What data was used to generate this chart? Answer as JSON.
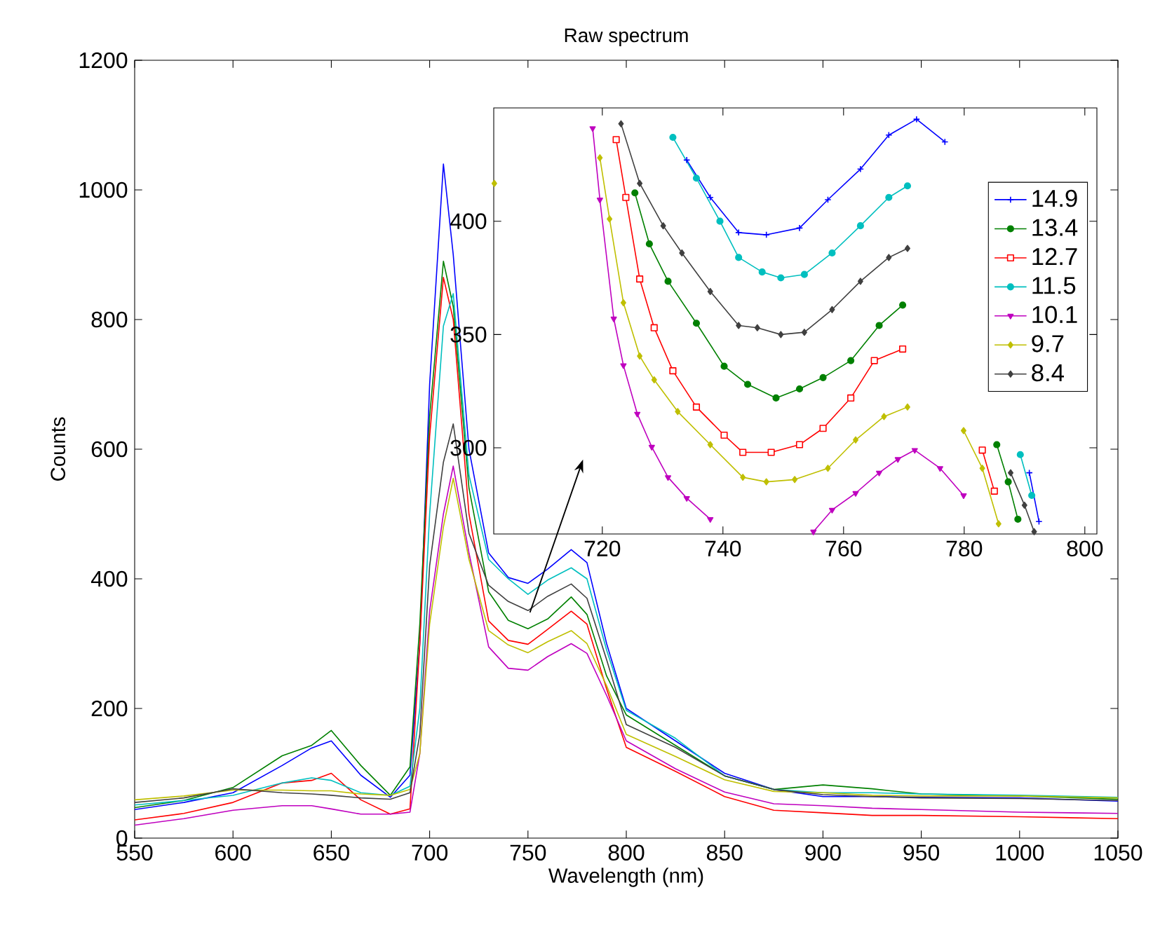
{
  "chart_data": [
    {
      "type": "line",
      "title": "Raw spectrum",
      "xlabel": "Wavelength (nm)",
      "ylabel": "Counts",
      "x": [
        550,
        575,
        600,
        625,
        640,
        650,
        665,
        680,
        690,
        695,
        700,
        707,
        712,
        720,
        730,
        740,
        750,
        760,
        772,
        780,
        790,
        800,
        825,
        850,
        875,
        900,
        925,
        950,
        1000,
        1050
      ],
      "series": [
        {
          "color": "#0000ff",
          "values": [
            44,
            55,
            70,
            112,
            139,
            150,
            97,
            63,
            97,
            300,
            700,
            1040,
            900,
            600,
            440,
            402,
            393,
            415,
            445,
            425,
            300,
            200,
            150,
            100,
            75,
            64,
            64,
            63,
            62,
            57
          ]
        },
        {
          "color": "#008000",
          "values": [
            47,
            58,
            78,
            127,
            143,
            166,
            112,
            66,
            110,
            330,
            650,
            890,
            820,
            540,
            380,
            336,
            323,
            338,
            372,
            345,
            250,
            190,
            143,
            96,
            75,
            82,
            76,
            68,
            65,
            60
          ]
        },
        {
          "color": "#ff0000",
          "values": [
            28,
            38,
            55,
            85,
            89,
            100,
            59,
            37,
            45,
            300,
            620,
            865,
            800,
            500,
            335,
            305,
            299,
            322,
            350,
            330,
            230,
            140,
            103,
            64,
            43,
            39,
            35,
            35,
            33,
            30
          ]
        },
        {
          "color": "#00bfbf",
          "values": [
            51,
            58,
            66,
            85,
            93,
            89,
            70,
            66,
            80,
            200,
            500,
            790,
            840,
            560,
            430,
            400,
            376,
            398,
            417,
            400,
            290,
            197,
            154,
            96,
            75,
            70,
            70,
            68,
            66,
            63
          ]
        },
        {
          "color": "#bf00bf",
          "values": [
            20,
            30,
            43,
            50,
            50,
            45,
            37,
            37,
            40,
            130,
            350,
            500,
            574,
            440,
            295,
            262,
            259,
            280,
            300,
            285,
            220,
            150,
            107,
            71,
            53,
            50,
            46,
            44,
            40,
            38
          ]
        },
        {
          "color": "#bfbf00",
          "values": [
            59,
            65,
            74,
            74,
            73,
            73,
            68,
            66,
            75,
            130,
            330,
            480,
            555,
            430,
            320,
            298,
            286,
            303,
            320,
            300,
            235,
            160,
            126,
            90,
            72,
            70,
            66,
            65,
            65,
            62
          ]
        },
        {
          "color": "#404040",
          "values": [
            55,
            62,
            76,
            70,
            68,
            66,
            62,
            60,
            70,
            160,
            420,
            580,
            639,
            470,
            390,
            365,
            351,
            373,
            392,
            370,
            275,
            175,
            140,
            96,
            75,
            67,
            64,
            62,
            61,
            58
          ]
        }
      ],
      "xlim": [
        550,
        1050
      ],
      "ylim": [
        0,
        1200
      ],
      "xticks": [
        550,
        600,
        650,
        700,
        750,
        800,
        850,
        900,
        950,
        1000,
        1050
      ],
      "yticks": [
        0,
        200,
        400,
        600,
        800,
        1000,
        1200
      ]
    },
    {
      "type": "line",
      "legend": "right",
      "xlim": [
        702,
        802
      ],
      "ylim": [
        262,
        450
      ],
      "xticks": [
        720,
        740,
        760,
        780,
        800
      ],
      "yticks": [
        300,
        350,
        400
      ],
      "series": [
        {
          "name": "14.9",
          "color": "#0000ff",
          "marker": "cross",
          "x": [
            734,
            737.9,
            742.6,
            747.2,
            752.7,
            757.4,
            762.8,
            767.5,
            772.1,
            776.8,
            781,
            790.8,
            792.4
          ],
          "values": [
            427,
            410.5,
            395,
            394,
            397,
            409.5,
            423,
            438,
            445,
            435,
            null,
            289,
            267.5
          ]
        },
        {
          "name": "13.4",
          "color": "#008000",
          "marker": "circle",
          "x": [
            725.4,
            727.8,
            730.9,
            735.6,
            740.2,
            744.1,
            748.8,
            752.7,
            756.6,
            761.2,
            765.9,
            769.8,
            780,
            785.4,
            787.3,
            788.9
          ],
          "values": [
            412.5,
            390,
            373.5,
            355,
            336,
            328,
            322,
            326,
            331,
            338.5,
            354,
            363,
            null,
            301.4,
            285,
            268.5
          ]
        },
        {
          "name": "12.7",
          "color": "#ff0000",
          "marker": "square",
          "x": [
            722.3,
            723.9,
            726.2,
            728.6,
            731.7,
            735.6,
            740.2,
            743.3,
            748,
            752.7,
            756.6,
            761.2,
            765.1,
            769.8,
            778,
            783,
            785
          ],
          "values": [
            436,
            410.5,
            374.5,
            353,
            334,
            318,
            305.6,
            298,
            298,
            301.4,
            308.6,
            322,
            338.5,
            343.6,
            null,
            299,
            280.9
          ]
        },
        {
          "name": "11.5",
          "color": "#00bfbf",
          "marker": "circle",
          "x": [
            731.7,
            735.6,
            739.5,
            742.6,
            746.5,
            749.6,
            753.5,
            758.1,
            762.8,
            767.5,
            770.6,
            780,
            789.3,
            791.2
          ],
          "values": [
            437,
            419,
            400,
            384,
            377.6,
            375,
            376.5,
            386,
            398,
            410.5,
            415.6,
            null,
            297,
            279
          ]
        },
        {
          "name": "10.1",
          "color": "#bf00bf",
          "marker": "triangle",
          "x": [
            718.4,
            719.6,
            721.9,
            723.5,
            725.8,
            728.2,
            730.9,
            734,
            737.9,
            748,
            755,
            758.1,
            762,
            765.9,
            769,
            771.8,
            776,
            779.9
          ],
          "values": [
            441,
            409.5,
            357,
            336.4,
            315,
            300.4,
            287,
            277.8,
            268.5,
            null,
            263,
            272.6,
            280,
            289,
            295,
            299,
            291,
            279
          ]
        },
        {
          "name": "9.7",
          "color": "#bfbf00",
          "marker": "diamond",
          "x": [
            702.1,
            710,
            719.6,
            721.2,
            723.5,
            726.2,
            728.6,
            732.5,
            737.9,
            743.3,
            747.2,
            751.9,
            757.4,
            762,
            766.7,
            770.6,
            776,
            779.9,
            783,
            785.7
          ],
          "values": [
            416.7,
            null,
            428,
            401,
            364,
            340.5,
            330,
            316,
            301.4,
            287,
            285,
            286,
            291,
            303.5,
            313.8,
            318,
            null,
            307.6,
            291,
            266.5
          ]
        },
        {
          "name": "8.4",
          "color": "#404040",
          "marker": "diamond",
          "x": [
            723.1,
            726.2,
            730.1,
            733.2,
            737.9,
            742.6,
            745.7,
            749.6,
            753.5,
            758.1,
            762.8,
            767.5,
            770.6,
            780,
            787.7,
            790,
            791.6
          ],
          "values": [
            443,
            416.7,
            398,
            386,
            369,
            354,
            353,
            350,
            351,
            361,
            373.5,
            384,
            388,
            null,
            289,
            274.7,
            263
          ]
        }
      ]
    }
  ]
}
